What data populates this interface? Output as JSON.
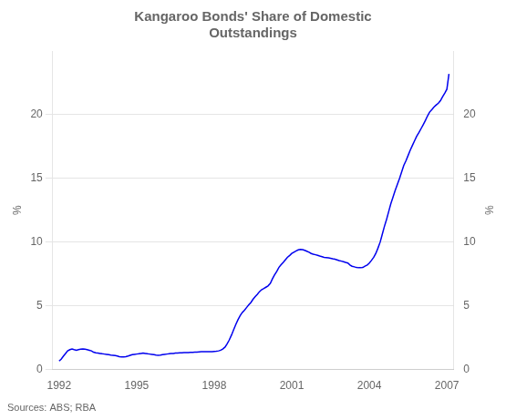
{
  "chart_data": {
    "type": "line",
    "title": "Kangaroo Bonds' Share of Domestic\nOutstandings",
    "ylabel": "%",
    "y2label": "%",
    "annotations": [
      "Sources: ABS; RBA"
    ],
    "color": "#0000EE",
    "grid": "y",
    "xlim": [
      1991.75,
      2007.25
    ],
    "xticks": [
      1992,
      1995,
      1998,
      2001,
      2004,
      2007
    ],
    "ylim": [
      0,
      25
    ],
    "yticks": [
      0,
      5,
      10,
      15,
      20
    ],
    "y2lim": [
      0,
      25
    ],
    "y2ticks": [
      0,
      5,
      10,
      15,
      20
    ],
    "x": [
      1992.0,
      1992.08,
      1992.17,
      1992.25,
      1992.33,
      1992.42,
      1992.5,
      1992.58,
      1992.67,
      1992.75,
      1992.83,
      1992.92,
      1993.0,
      1993.08,
      1993.17,
      1993.25,
      1993.33,
      1993.42,
      1993.5,
      1993.58,
      1993.67,
      1993.75,
      1993.83,
      1993.92,
      1994.0,
      1994.08,
      1994.17,
      1994.25,
      1994.33,
      1994.42,
      1994.5,
      1994.58,
      1994.67,
      1994.75,
      1994.83,
      1994.92,
      1995.0,
      1995.08,
      1995.17,
      1995.25,
      1995.33,
      1995.42,
      1995.5,
      1995.58,
      1995.67,
      1995.75,
      1995.83,
      1995.92,
      1996.0,
      1996.08,
      1996.17,
      1996.25,
      1996.33,
      1996.42,
      1996.5,
      1996.58,
      1996.67,
      1996.75,
      1996.83,
      1996.92,
      1997.0,
      1997.08,
      1997.17,
      1997.25,
      1997.33,
      1997.42,
      1997.5,
      1997.58,
      1997.67,
      1997.75,
      1997.83,
      1997.92,
      1998.0,
      1998.08,
      1998.17,
      1998.25,
      1998.33,
      1998.42,
      1998.5,
      1998.58,
      1998.67,
      1998.75,
      1998.83,
      1998.92,
      1999.0,
      1999.08,
      1999.17,
      1999.25,
      1999.33,
      1999.42,
      1999.5,
      1999.58,
      1999.67,
      1999.75,
      1999.83,
      1999.92,
      2000.0,
      2000.08,
      2000.17,
      2000.25,
      2000.33,
      2000.42,
      2000.5,
      2000.58,
      2000.67,
      2000.75,
      2000.83,
      2000.92,
      2001.0,
      2001.08,
      2001.17,
      2001.25,
      2001.33,
      2001.42,
      2001.5,
      2001.58,
      2001.67,
      2001.75,
      2001.83,
      2001.92,
      2002.0,
      2002.08,
      2002.17,
      2002.25,
      2002.33,
      2002.42,
      2002.5,
      2002.58,
      2002.67,
      2002.75,
      2002.83,
      2002.92,
      2003.0,
      2003.08,
      2003.17,
      2003.25,
      2003.33,
      2003.42,
      2003.5,
      2003.58,
      2003.67,
      2003.75,
      2003.83,
      2003.92,
      2004.0,
      2004.08,
      2004.17,
      2004.25,
      2004.33,
      2004.42,
      2004.5,
      2004.58,
      2004.67,
      2004.75,
      2004.83,
      2004.92,
      2005.0,
      2005.08,
      2005.17,
      2005.25,
      2005.33,
      2005.42,
      2005.5,
      2005.58,
      2005.67,
      2005.75,
      2005.83,
      2005.92,
      2006.0,
      2006.08,
      2006.17,
      2006.25,
      2006.33,
      2006.42,
      2006.5,
      2006.58,
      2006.67,
      2006.75,
      2006.83,
      2006.92,
      2007.0,
      2007.08
    ],
    "values": [
      0.65,
      0.8,
      1.05,
      1.25,
      1.45,
      1.55,
      1.6,
      1.55,
      1.5,
      1.55,
      1.58,
      1.6,
      1.58,
      1.55,
      1.5,
      1.45,
      1.35,
      1.3,
      1.28,
      1.25,
      1.22,
      1.2,
      1.18,
      1.15,
      1.12,
      1.1,
      1.08,
      1.05,
      1.0,
      0.98,
      0.98,
      1.0,
      1.05,
      1.1,
      1.15,
      1.18,
      1.2,
      1.22,
      1.25,
      1.28,
      1.25,
      1.22,
      1.2,
      1.18,
      1.15,
      1.12,
      1.1,
      1.12,
      1.15,
      1.18,
      1.2,
      1.22,
      1.25,
      1.25,
      1.28,
      1.28,
      1.3,
      1.3,
      1.32,
      1.32,
      1.32,
      1.33,
      1.34,
      1.35,
      1.36,
      1.37,
      1.38,
      1.38,
      1.38,
      1.38,
      1.38,
      1.38,
      1.4,
      1.42,
      1.45,
      1.5,
      1.6,
      1.75,
      2.0,
      2.3,
      2.7,
      3.1,
      3.5,
      3.9,
      4.2,
      4.45,
      4.65,
      4.85,
      5.05,
      5.25,
      5.5,
      5.7,
      5.9,
      6.1,
      6.25,
      6.35,
      6.45,
      6.55,
      6.75,
      7.1,
      7.4,
      7.7,
      8.0,
      8.2,
      8.4,
      8.6,
      8.8,
      8.95,
      9.1,
      9.2,
      9.3,
      9.38,
      9.42,
      9.4,
      9.35,
      9.28,
      9.2,
      9.1,
      9.05,
      9.0,
      8.95,
      8.9,
      8.85,
      8.8,
      8.78,
      8.75,
      8.72,
      8.68,
      8.65,
      8.6,
      8.55,
      8.5,
      8.45,
      8.4,
      8.35,
      8.2,
      8.1,
      8.05,
      8.0,
      7.98,
      7.98,
      8.0,
      8.1,
      8.2,
      8.35,
      8.55,
      8.8,
      9.1,
      9.5,
      10.0,
      10.6,
      11.2,
      11.8,
      12.4,
      13.0,
      13.55,
      14.05,
      14.5,
      15.0,
      15.5,
      16.0,
      16.4,
      16.8,
      17.2,
      17.6,
      17.95,
      18.3,
      18.6,
      18.9,
      19.2,
      19.55,
      19.9,
      20.2,
      20.4,
      20.6,
      20.75,
      20.9,
      21.1,
      21.4,
      21.7,
      22.0,
      23.2
    ]
  }
}
